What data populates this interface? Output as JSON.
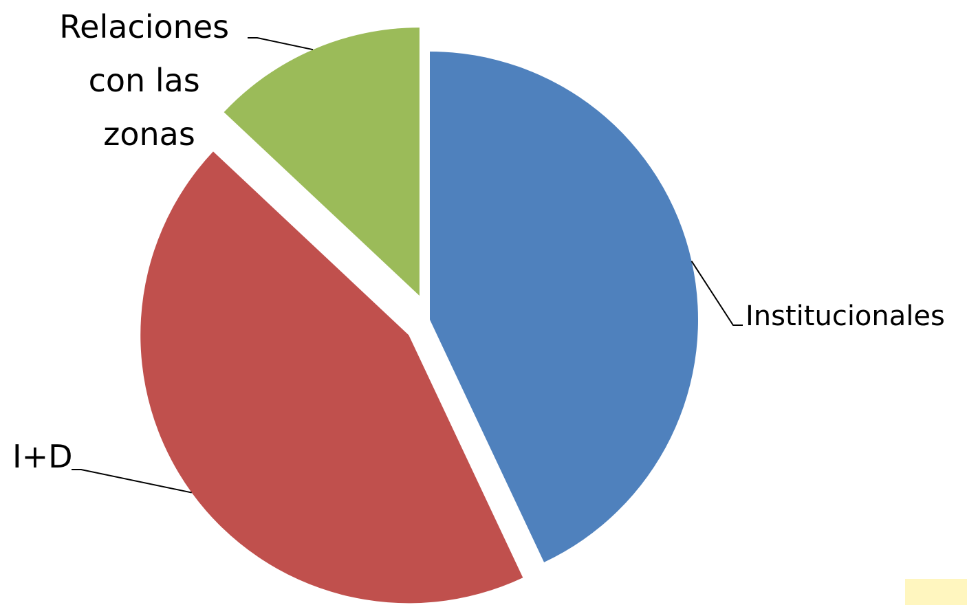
{
  "chart_data": {
    "type": "pie",
    "title": "",
    "slices": [
      {
        "label": "Institucionales",
        "value": 43,
        "color": "#4f81bd",
        "exploded": false
      },
      {
        "label": "I+D",
        "value": 44,
        "color": "#c0504d",
        "exploded": true
      },
      {
        "label": "Relaciones con las zonas",
        "value": 13,
        "color": "#9bbb59",
        "exploded": true
      }
    ],
    "legend": "none",
    "data_labels": "category names with leader lines"
  }
}
